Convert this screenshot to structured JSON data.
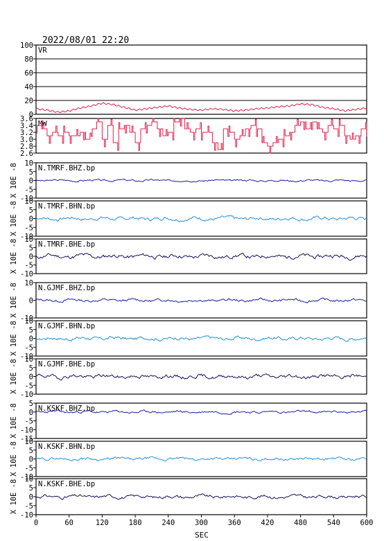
{
  "header": {
    "timestamp": "2022/08/01 22:20"
  },
  "colors": {
    "axis": "#000000",
    "grid": "#000000",
    "vr": "#e0204a",
    "mw": "#e0204a",
    "bhz": "#1a1aa0",
    "bhn": "#2090d8",
    "bhe": "#10105a"
  },
  "chart_data": {
    "type": "line",
    "xlabel": "SEC",
    "xlim": [
      0,
      600
    ],
    "xticks": [
      "0",
      "60",
      "120",
      "180",
      "240",
      "300",
      "360",
      "420",
      "480",
      "540",
      "600"
    ],
    "panels": [
      {
        "id": "vr",
        "label": "VR",
        "ylabel": "",
        "ylim": [
          0,
          100
        ],
        "yticks": [
          "0",
          "20",
          "40",
          "60",
          "80",
          "100"
        ],
        "yticks_v": [
          0,
          20,
          40,
          60,
          80,
          100
        ],
        "grid": true,
        "color_key": "vr",
        "x": [
          0,
          20,
          40,
          60,
          80,
          100,
          120,
          140,
          160,
          180,
          200,
          220,
          240,
          260,
          280,
          300,
          320,
          340,
          360,
          380,
          400,
          420,
          440,
          460,
          480,
          500,
          520,
          540,
          560,
          580,
          600
        ],
        "y": [
          8,
          6,
          3,
          5,
          9,
          12,
          16,
          14,
          10,
          6,
          8,
          10,
          12,
          9,
          7,
          6,
          8,
          7,
          5,
          6,
          8,
          9,
          11,
          12,
          15,
          14,
          10,
          8,
          5,
          7,
          9
        ]
      },
      {
        "id": "mw",
        "label": "MW",
        "ylabel": "",
        "ylim": [
          2.6,
          3.6
        ],
        "yticks": [
          "2.6",
          "2.8",
          "3.0",
          "3.2",
          "3.4",
          "3.6"
        ],
        "yticks_v": [
          2.6,
          2.8,
          3.0,
          3.2,
          3.4,
          3.6
        ],
        "grid": false,
        "color_key": "mw",
        "step": true,
        "x": [
          0,
          10,
          20,
          30,
          40,
          50,
          60,
          70,
          80,
          90,
          100,
          110,
          120,
          130,
          140,
          150,
          160,
          170,
          180,
          190,
          200,
          210,
          220,
          230,
          240,
          250,
          260,
          270,
          280,
          290,
          300,
          310,
          320,
          330,
          340,
          350,
          360,
          370,
          380,
          390,
          400,
          410,
          420,
          430,
          440,
          450,
          460,
          470,
          480,
          490,
          500,
          510,
          520,
          530,
          540,
          550,
          560,
          570,
          580,
          590,
          600
        ],
        "y": [
          3.4,
          3.3,
          3.1,
          3.2,
          3.1,
          3.2,
          3.1,
          3.1,
          3.2,
          3.0,
          3.3,
          3.5,
          3.0,
          3.4,
          2.9,
          3.3,
          3.4,
          3.2,
          2.9,
          3.3,
          3.4,
          3.5,
          3.3,
          3.1,
          3.2,
          3.5,
          3.6,
          3.3,
          3.2,
          3.3,
          3.2,
          3.2,
          2.9,
          2.7,
          3.3,
          3.2,
          3.0,
          3.1,
          3.3,
          3.4,
          3.3,
          2.9,
          2.8,
          2.9,
          3.0,
          3.1,
          3.2,
          3.4,
          3.5,
          3.3,
          3.5,
          3.3,
          3.2,
          3.4,
          3.3,
          3.4,
          3.1,
          3.0,
          3.1,
          3.3,
          3.3
        ]
      },
      {
        "id": "tmrf_bhz",
        "label": "N.TMRF.BHZ.bp",
        "ylabel": "X 10E -8",
        "ylim": [
          -10,
          10
        ],
        "yticks": [
          "-10",
          "-5",
          "0",
          "5",
          "10"
        ],
        "yticks_v": [
          -10,
          -5,
          0,
          5,
          10
        ],
        "grid": false,
        "color_key": "bhz",
        "amp": 0.5,
        "seed": 3
      },
      {
        "id": "tmrf_bhn",
        "label": "N.TMRF.BHN.bp",
        "ylabel": "X 10E -8",
        "ylim": [
          -10,
          10
        ],
        "yticks": [
          "-10",
          "-5",
          "0",
          "5",
          "10"
        ],
        "yticks_v": [
          -10,
          -5,
          0,
          5,
          10
        ],
        "grid": false,
        "color_key": "bhn",
        "amp": 0.9,
        "seed": 7
      },
      {
        "id": "tmrf_bhe",
        "label": "N.TMRF.BHE.bp",
        "ylabel": "X 10E -8",
        "ylim": [
          -10,
          10
        ],
        "yticks": [
          "-10",
          "-5",
          "0",
          "5",
          "10"
        ],
        "yticks_v": [
          -10,
          -5,
          0,
          5,
          10
        ],
        "grid": false,
        "color_key": "bhe",
        "amp": 1.1,
        "seed": 11
      },
      {
        "id": "gjmf_bhz",
        "label": "N.GJMF.BHZ.bp",
        "ylabel": "X 10E -8",
        "ylim": [
          -10,
          10
        ],
        "yticks": [
          "-10",
          "0",
          "10"
        ],
        "yticks_v": [
          -10,
          0,
          10
        ],
        "grid": false,
        "color_key": "bhz",
        "amp": 0.7,
        "seed": 13
      },
      {
        "id": "gjmf_bhn",
        "label": "N.GJMF.BHN.bp",
        "ylabel": "X 10E -8",
        "ylim": [
          -10,
          10
        ],
        "yticks": [
          "-10",
          "-5",
          "0",
          "5",
          "10"
        ],
        "yticks_v": [
          -10,
          -5,
          0,
          5,
          10
        ],
        "grid": false,
        "color_key": "bhn",
        "amp": 0.9,
        "seed": 17
      },
      {
        "id": "gjmf_bhe",
        "label": "N.GJMF.BHE.bp",
        "ylabel": "X 10E -8",
        "ylim": [
          -10,
          10
        ],
        "yticks": [
          "-10",
          "-5",
          "0",
          "5",
          "10"
        ],
        "yticks_v": [
          -10,
          -5,
          0,
          5,
          10
        ],
        "grid": false,
        "color_key": "bhe",
        "amp": 1.0,
        "seed": 19
      },
      {
        "id": "kskf_bhz",
        "label": "N.KSKF.BHZ.bp",
        "ylabel": "X 10E -8",
        "ylim": [
          -15,
          5
        ],
        "yticks": [
          "-15",
          "-10",
          "-5",
          "0",
          "5"
        ],
        "yticks_v": [
          -15,
          -10,
          -5,
          0,
          5
        ],
        "grid": false,
        "color_key": "bhz",
        "amp": 0.6,
        "seed": 23
      },
      {
        "id": "kskf_bhn",
        "label": "N.KSKF.BHN.bp",
        "ylabel": "X 10E -8",
        "ylim": [
          -10,
          10
        ],
        "yticks": [
          "-10",
          "-5",
          "0",
          "5",
          "10"
        ],
        "yticks_v": [
          -10,
          -5,
          0,
          5,
          10
        ],
        "grid": false,
        "color_key": "bhn",
        "amp": 0.7,
        "seed": 29
      },
      {
        "id": "kskf_bhe",
        "label": "N.KSKF.BHE.bp",
        "ylabel": "X 10E -8",
        "ylim": [
          -10,
          10
        ],
        "yticks": [
          "-10",
          "-5",
          "0",
          "5",
          "10"
        ],
        "yticks_v": [
          -10,
          -5,
          0,
          5,
          10
        ],
        "grid": false,
        "color_key": "bhe",
        "amp": 0.8,
        "seed": 31
      }
    ]
  }
}
